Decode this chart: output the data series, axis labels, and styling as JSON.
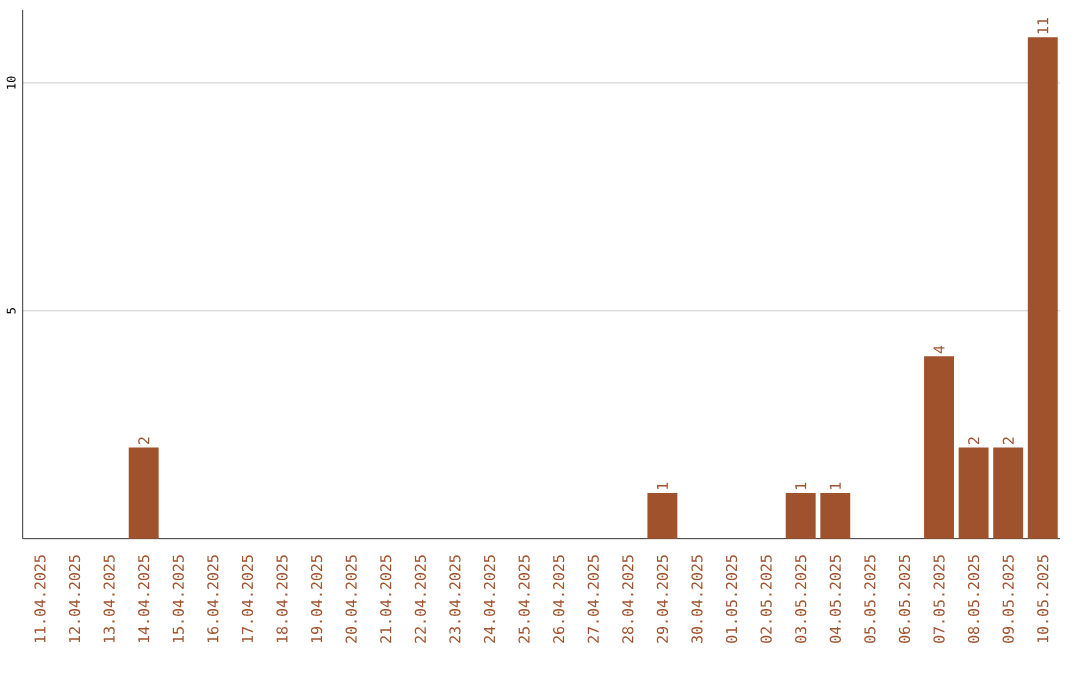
{
  "chart_data": {
    "type": "bar",
    "categories": [
      "11.04.2025",
      "12.04.2025",
      "13.04.2025",
      "14.04.2025",
      "15.04.2025",
      "16.04.2025",
      "17.04.2025",
      "18.04.2025",
      "19.04.2025",
      "20.04.2025",
      "21.04.2025",
      "22.04.2025",
      "23.04.2025",
      "24.04.2025",
      "25.04.2025",
      "26.04.2025",
      "27.04.2025",
      "28.04.2025",
      "29.04.2025",
      "30.04.2025",
      "01.05.2025",
      "02.05.2025",
      "03.05.2025",
      "04.05.2025",
      "05.05.2025",
      "06.05.2025",
      "07.05.2025",
      "08.05.2025",
      "09.05.2025",
      "10.05.2025"
    ],
    "values": [
      0,
      0,
      0,
      2,
      0,
      0,
      0,
      0,
      0,
      0,
      0,
      0,
      0,
      0,
      0,
      0,
      0,
      0,
      1,
      0,
      0,
      0,
      1,
      1,
      0,
      0,
      4,
      2,
      2,
      11
    ],
    "value_labels": [
      null,
      null,
      null,
      "2",
      null,
      null,
      null,
      null,
      null,
      null,
      null,
      null,
      null,
      null,
      null,
      null,
      null,
      null,
      "1",
      null,
      null,
      null,
      "1",
      "1",
      null,
      null,
      "4",
      "2",
      "2",
      "11"
    ],
    "color": "#a0522d",
    "ylim": [
      0,
      11.6
    ],
    "yticks": [
      5,
      10
    ],
    "grid": "y"
  }
}
